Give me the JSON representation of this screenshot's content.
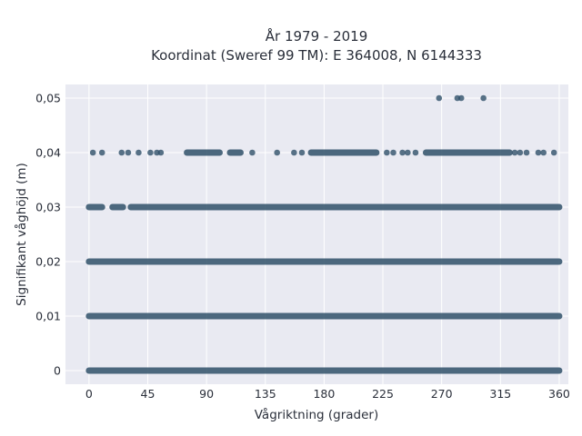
{
  "chart_data": {
    "type": "scatter",
    "title": "År 1979 - 2019",
    "subtitle": "Koordinat (Sweref 99 TM): E 364008, N 6144333",
    "xlabel": "Vågriktning (grader)",
    "ylabel": "Signifikant våghöjd (m)",
    "xlim": [
      -18,
      367
    ],
    "ylim": [
      -0.0025,
      0.0525
    ],
    "xticks": [
      0,
      45,
      90,
      135,
      180,
      225,
      270,
      315,
      360
    ],
    "xtick_labels": [
      "0",
      "45",
      "90",
      "135",
      "180",
      "225",
      "270",
      "315",
      "360"
    ],
    "yticks": [
      0,
      0.01,
      0.02,
      0.03,
      0.04,
      0.05
    ],
    "ytick_labels": [
      "0",
      "0,01",
      "0,02",
      "0,03",
      "0,04",
      "0,05"
    ],
    "grid": true,
    "marker_color": "#2f5069",
    "background_color": "#e9eaf2",
    "series": [
      {
        "values_by_level": [
          {
            "y": 0.0,
            "x_ranges": [
              [
                0,
                360
              ]
            ]
          },
          {
            "y": 0.01,
            "x_ranges": [
              [
                0,
                360
              ]
            ]
          },
          {
            "y": 0.02,
            "x_ranges": [
              [
                0,
                360
              ]
            ]
          },
          {
            "y": 0.03,
            "x_ranges": [
              [
                0,
                10
              ],
              [
                18,
                26
              ],
              [
                32,
                360
              ]
            ]
          },
          {
            "y": 0.04,
            "x_ranges": [
              [
                75,
                100
              ],
              [
                108,
                116
              ],
              [
                170,
                220
              ],
              [
                258,
                322
              ]
            ]
          }
        ],
        "points": [
          {
            "x": 3,
            "y": 0.04
          },
          {
            "x": 10,
            "y": 0.04
          },
          {
            "x": 25,
            "y": 0.04
          },
          {
            "x": 30,
            "y": 0.04
          },
          {
            "x": 38,
            "y": 0.04
          },
          {
            "x": 47,
            "y": 0.04
          },
          {
            "x": 52,
            "y": 0.04
          },
          {
            "x": 55,
            "y": 0.04
          },
          {
            "x": 125,
            "y": 0.04
          },
          {
            "x": 144,
            "y": 0.04
          },
          {
            "x": 157,
            "y": 0.04
          },
          {
            "x": 163,
            "y": 0.04
          },
          {
            "x": 228,
            "y": 0.04
          },
          {
            "x": 233,
            "y": 0.04
          },
          {
            "x": 240,
            "y": 0.04
          },
          {
            "x": 244,
            "y": 0.04
          },
          {
            "x": 250,
            "y": 0.04
          },
          {
            "x": 326,
            "y": 0.04
          },
          {
            "x": 330,
            "y": 0.04
          },
          {
            "x": 335,
            "y": 0.04
          },
          {
            "x": 344,
            "y": 0.04
          },
          {
            "x": 348,
            "y": 0.04
          },
          {
            "x": 356,
            "y": 0.04
          },
          {
            "x": 268,
            "y": 0.05
          },
          {
            "x": 282,
            "y": 0.05
          },
          {
            "x": 285,
            "y": 0.05
          },
          {
            "x": 302,
            "y": 0.05
          }
        ]
      }
    ]
  }
}
